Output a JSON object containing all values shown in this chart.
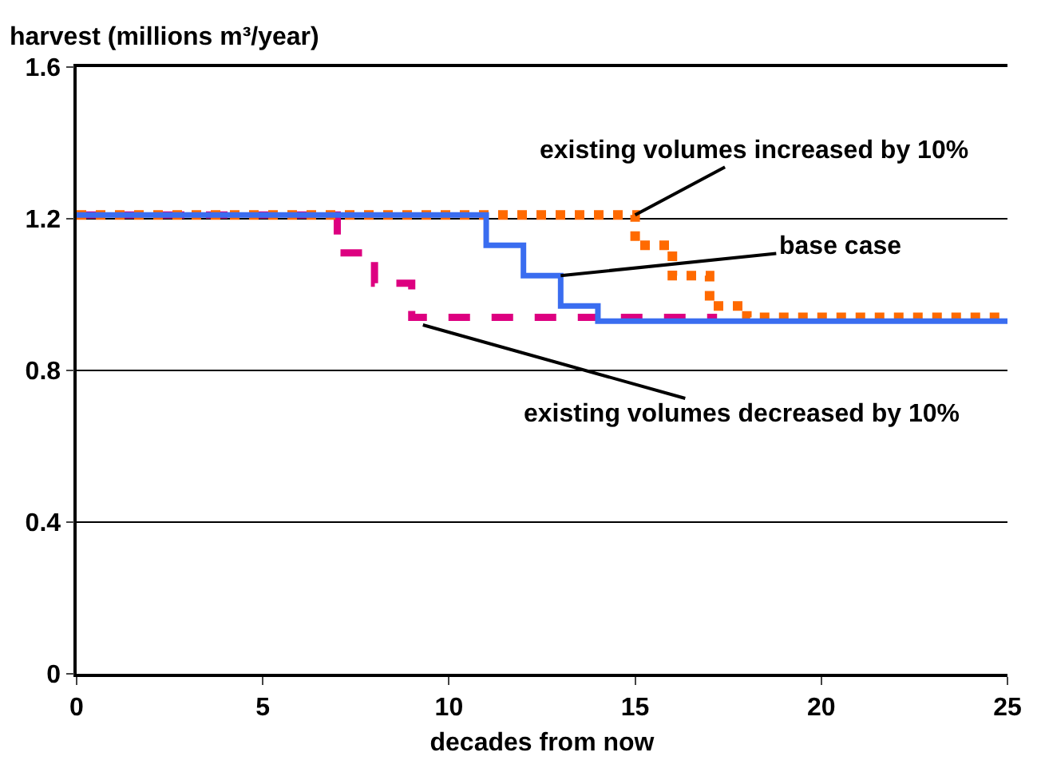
{
  "chart_data": {
    "type": "step",
    "ylabel": "harvest (millions m³/year)",
    "xlabel": "decades from now",
    "xlim": [
      0,
      25
    ],
    "xticks": [
      0,
      5,
      10,
      15,
      20,
      25
    ],
    "ylim": [
      0,
      1.6
    ],
    "yticks": [
      0,
      0.4,
      0.8,
      1.2,
      1.6
    ],
    "grid": "y",
    "series": [
      {
        "color": "#3a6df0",
        "line_style": "solid",
        "x": [
          0,
          11,
          12,
          13,
          14,
          25
        ],
        "values": [
          1.21,
          1.13,
          1.05,
          0.97,
          0.93,
          0.93
        ]
      },
      {
        "color": "#ff6a00",
        "line_style": "dotted",
        "x": [
          0,
          15,
          16,
          17,
          18,
          25
        ],
        "values": [
          1.21,
          1.13,
          1.05,
          0.97,
          0.94,
          0.94
        ]
      },
      {
        "color": "#dd0080",
        "line_style": "dashed",
        "x": [
          0,
          7,
          8,
          9,
          17.2
        ],
        "values": [
          1.21,
          1.11,
          1.03,
          0.94,
          0.94
        ]
      }
    ],
    "annotations": [
      {
        "text": "existing volumes increased by 10%",
        "x": 15,
        "y": 1.21
      },
      {
        "text": "base case",
        "x": 13,
        "y": 1.05
      },
      {
        "text": "existing volumes decreased by 10%",
        "x": 9.3,
        "y": 0.92
      }
    ]
  }
}
